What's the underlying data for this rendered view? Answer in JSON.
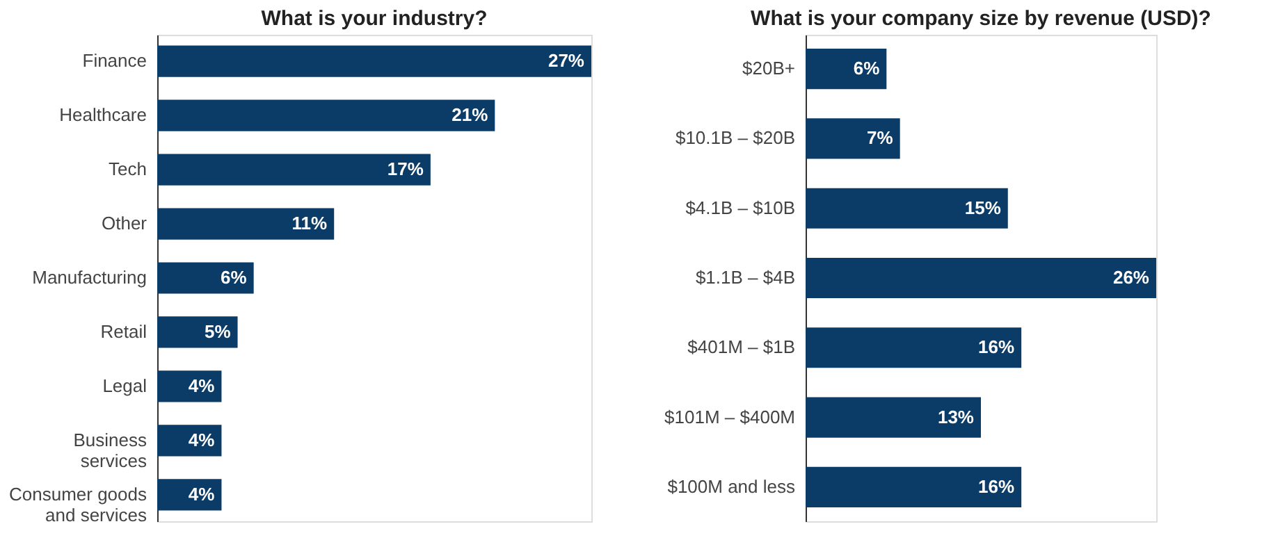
{
  "chart_data": [
    {
      "type": "bar",
      "orientation": "horizontal",
      "title": "What is your industry?",
      "categories": [
        "Finance",
        "Healthcare",
        "Tech",
        "Other",
        "Manufacturing",
        "Retail",
        "Legal",
        "Business services",
        "Consumer goods and services"
      ],
      "values": [
        27,
        21,
        17,
        11,
        6,
        5,
        4,
        4,
        4
      ],
      "value_labels": [
        "27%",
        "21%",
        "17%",
        "11%",
        "6%",
        "5%",
        "4%",
        "4%",
        "4%"
      ],
      "color": "#0b3c68",
      "tick_labels": "y"
    },
    {
      "type": "bar",
      "orientation": "horizontal",
      "title": "What is your company size by revenue (USD)?",
      "categories": [
        "$20B+",
        "$10.1B – $20B",
        "$4.1B – $10B",
        "$1.1B – $4B",
        "$401M – $1B",
        "$101M – $400M",
        "$100M and less"
      ],
      "values": [
        6,
        7,
        15,
        26,
        16,
        13,
        16
      ],
      "value_labels": [
        "6%",
        "7%",
        "15%",
        "26%",
        "16%",
        "13%",
        "16%"
      ],
      "color": "#0b3c68",
      "tick_labels": "y"
    }
  ]
}
